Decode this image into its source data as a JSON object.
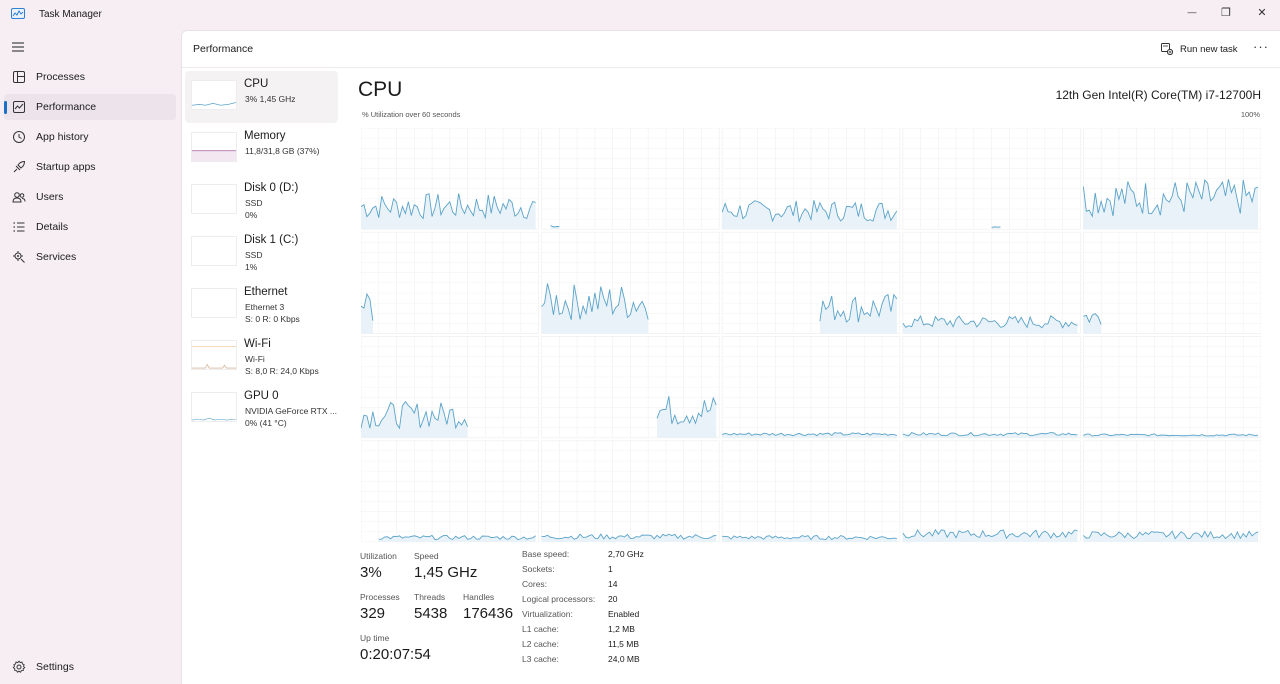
{
  "app": {
    "title": "Task Manager"
  },
  "window_controls": {
    "minimize": "—",
    "restore": "❐",
    "close": "✕"
  },
  "nav": {
    "items": [
      {
        "id": "processes",
        "label": "Processes",
        "icon": "processes-icon"
      },
      {
        "id": "performance",
        "label": "Performance",
        "icon": "performance-icon",
        "active": true
      },
      {
        "id": "app-history",
        "label": "App history",
        "icon": "history-icon"
      },
      {
        "id": "startup-apps",
        "label": "Startup apps",
        "icon": "startup-icon"
      },
      {
        "id": "users",
        "label": "Users",
        "icon": "users-icon"
      },
      {
        "id": "details",
        "label": "Details",
        "icon": "details-icon"
      },
      {
        "id": "services",
        "label": "Services",
        "icon": "services-icon"
      }
    ],
    "settings_label": "Settings"
  },
  "header": {
    "title": "Performance",
    "run_new_task": "Run new task",
    "more": "···"
  },
  "resources": [
    {
      "name": "CPU",
      "sub1": "3%  1,45 GHz",
      "sub2": "",
      "active": true
    },
    {
      "name": "Memory",
      "sub1": "11,8/31,8 GB (37%)",
      "sub2": ""
    },
    {
      "name": "Disk 0 (D:)",
      "sub1": "SSD",
      "sub2": "0%"
    },
    {
      "name": "Disk 1 (C:)",
      "sub1": "SSD",
      "sub2": "1%"
    },
    {
      "name": "Ethernet",
      "sub1": "Ethernet 3",
      "sub2": "S: 0  R: 0 Kbps"
    },
    {
      "name": "Wi-Fi",
      "sub1": "Wi-Fi",
      "sub2": "S: 8,0  R: 24,0 Kbps"
    },
    {
      "name": "GPU 0",
      "sub1": "NVIDIA GeForce RTX ...",
      "sub2": "0%  (41 °C)"
    }
  ],
  "detail": {
    "title": "CPU",
    "model": "12th Gen Intel(R) Core(TM) i7-12700H",
    "graph_caption": "% Utilization over 60 seconds",
    "graph_max": "100%"
  },
  "stats": {
    "utilization": {
      "label": "Utilization",
      "value": "3%"
    },
    "speed": {
      "label": "Speed",
      "value": "1,45 GHz"
    },
    "processes": {
      "label": "Processes",
      "value": "329"
    },
    "threads": {
      "label": "Threads",
      "value": "5438"
    },
    "handles": {
      "label": "Handles",
      "value": "176436"
    },
    "uptime": {
      "label": "Up time",
      "value": "0:20:07:54"
    }
  },
  "specs": [
    {
      "label": "Base speed:",
      "value": "2,70 GHz"
    },
    {
      "label": "Sockets:",
      "value": "1"
    },
    {
      "label": "Cores:",
      "value": "14"
    },
    {
      "label": "Logical processors:",
      "value": "20"
    },
    {
      "label": "Virtualization:",
      "value": "Enabled"
    },
    {
      "label": "L1 cache:",
      "value": "1,2 MB"
    },
    {
      "label": "L2 cache:",
      "value": "11,5 MB"
    },
    {
      "label": "L3 cache:",
      "value": "24,0 MB"
    }
  ],
  "colors": {
    "accent": "#1b6fc4",
    "graph_line": "#5ba3c9",
    "graph_fill": "#e8f2f8",
    "grid": "#f1f1f1"
  }
}
